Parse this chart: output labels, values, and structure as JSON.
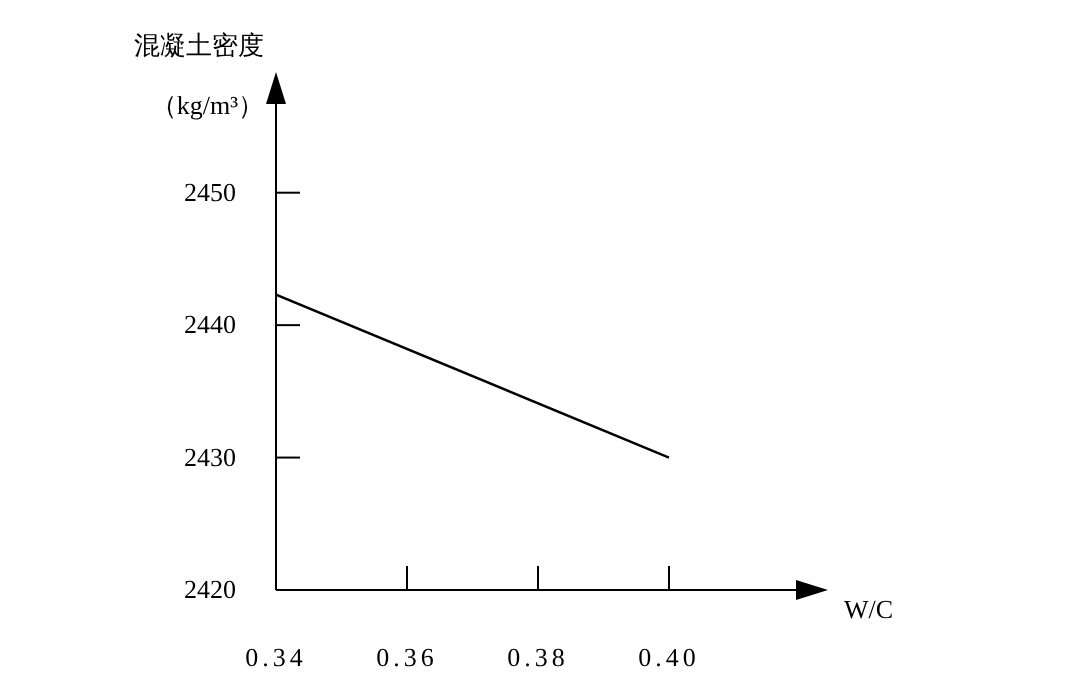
{
  "chart_data": {
    "type": "line",
    "xlabel": "W/C",
    "ylabel": "混凝土密度（kg/m³）",
    "x": [
      0.34,
      0.4
    ],
    "series": [
      {
        "color": "#000000",
        "values": [
          2442.3,
          2430
        ]
      }
    ],
    "xlim": [
      0.34,
      0.42
    ],
    "ylim": [
      2420,
      2457
    ],
    "xticks": [
      {
        "value": 0.34,
        "label": "0.34"
      },
      {
        "value": 0.36,
        "label": "0.36"
      },
      {
        "value": 0.38,
        "label": "0.38"
      },
      {
        "value": 0.4,
        "label": "0.40"
      }
    ],
    "yticks": [
      2420,
      2430,
      2440,
      2450
    ],
    "grid": false,
    "legend": false,
    "marker": "none",
    "line_style": "solid"
  }
}
